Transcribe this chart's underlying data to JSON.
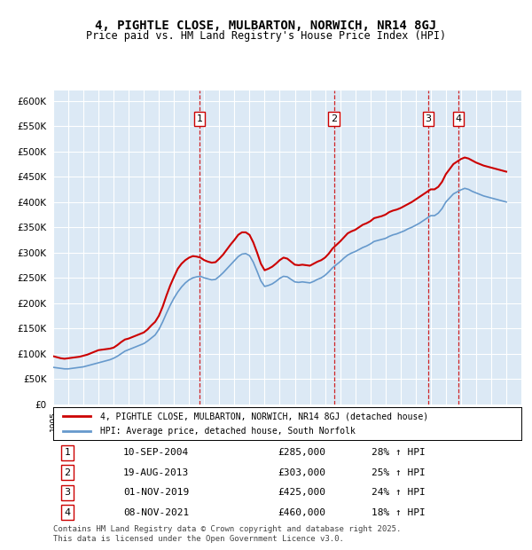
{
  "title": "4, PIGHTLE CLOSE, MULBARTON, NORWICH, NR14 8GJ",
  "subtitle": "Price paid vs. HM Land Registry's House Price Index (HPI)",
  "bg_color": "#dce9f5",
  "plot_bg_color": "#dce9f5",
  "ylim": [
    0,
    620000
  ],
  "yticks": [
    0,
    50000,
    100000,
    150000,
    200000,
    250000,
    300000,
    350000,
    400000,
    450000,
    500000,
    550000,
    600000
  ],
  "ylabel_format": "£{0}K",
  "xmin": 1995.0,
  "xmax": 2026.0,
  "transactions": [
    {
      "num": 1,
      "date": "10-SEP-2004",
      "price": 285000,
      "hpi_pct": "28%",
      "x": 2004.7
    },
    {
      "num": 2,
      "date": "19-AUG-2013",
      "price": 303000,
      "hpi_pct": "25%",
      "x": 2013.6
    },
    {
      "num": 3,
      "date": "01-NOV-2019",
      "price": 425000,
      "hpi_pct": "24%",
      "x": 2019.83
    },
    {
      "num": 4,
      "date": "08-NOV-2021",
      "price": 460000,
      "hpi_pct": "18%",
      "x": 2021.83
    }
  ],
  "red_line_color": "#cc0000",
  "blue_line_color": "#6699cc",
  "legend_label_red": "4, PIGHTLE CLOSE, MULBARTON, NORWICH, NR14 8GJ (detached house)",
  "legend_label_blue": "HPI: Average price, detached house, South Norfolk",
  "footer": "Contains HM Land Registry data © Crown copyright and database right 2025.\nThis data is licensed under the Open Government Licence v3.0.",
  "hpi_red_data": {
    "x": [
      1995.0,
      1995.25,
      1995.5,
      1995.75,
      1996.0,
      1996.25,
      1996.5,
      1996.75,
      1997.0,
      1997.25,
      1997.5,
      1997.75,
      1998.0,
      1998.25,
      1998.5,
      1998.75,
      1999.0,
      1999.25,
      1999.5,
      1999.75,
      2000.0,
      2000.25,
      2000.5,
      2000.75,
      2001.0,
      2001.25,
      2001.5,
      2001.75,
      2002.0,
      2002.25,
      2002.5,
      2002.75,
      2003.0,
      2003.25,
      2003.5,
      2003.75,
      2004.0,
      2004.25,
      2004.5,
      2004.75,
      2005.0,
      2005.25,
      2005.5,
      2005.75,
      2006.0,
      2006.25,
      2006.5,
      2006.75,
      2007.0,
      2007.25,
      2007.5,
      2007.75,
      2008.0,
      2008.25,
      2008.5,
      2008.75,
      2009.0,
      2009.25,
      2009.5,
      2009.75,
      2010.0,
      2010.25,
      2010.5,
      2010.75,
      2011.0,
      2011.25,
      2011.5,
      2011.75,
      2012.0,
      2012.25,
      2012.5,
      2012.75,
      2013.0,
      2013.25,
      2013.5,
      2013.75,
      2014.0,
      2014.25,
      2014.5,
      2014.75,
      2015.0,
      2015.25,
      2015.5,
      2015.75,
      2016.0,
      2016.25,
      2016.5,
      2016.75,
      2017.0,
      2017.25,
      2017.5,
      2017.75,
      2018.0,
      2018.25,
      2018.5,
      2018.75,
      2019.0,
      2019.25,
      2019.5,
      2019.75,
      2020.0,
      2020.25,
      2020.5,
      2020.75,
      2021.0,
      2021.25,
      2021.5,
      2021.75,
      2022.0,
      2022.25,
      2022.5,
      2022.75,
      2023.0,
      2023.25,
      2023.5,
      2023.75,
      2024.0,
      2024.25,
      2024.5,
      2024.75,
      2025.0
    ],
    "y": [
      95000,
      93000,
      91000,
      90000,
      91000,
      92000,
      93000,
      94000,
      96000,
      98000,
      101000,
      104000,
      107000,
      108000,
      109000,
      110000,
      112000,
      117000,
      123000,
      128000,
      130000,
      133000,
      136000,
      139000,
      142000,
      148000,
      156000,
      163000,
      175000,
      193000,
      215000,
      235000,
      252000,
      268000,
      278000,
      285000,
      290000,
      293000,
      292000,
      290000,
      285000,
      282000,
      280000,
      281000,
      288000,
      296000,
      306000,
      316000,
      325000,
      335000,
      340000,
      340000,
      335000,
      320000,
      300000,
      278000,
      265000,
      268000,
      272000,
      278000,
      285000,
      290000,
      288000,
      282000,
      276000,
      275000,
      276000,
      275000,
      274000,
      278000,
      282000,
      285000,
      290000,
      298000,
      308000,
      315000,
      322000,
      330000,
      338000,
      342000,
      345000,
      350000,
      355000,
      358000,
      362000,
      368000,
      370000,
      372000,
      375000,
      380000,
      383000,
      385000,
      388000,
      392000,
      396000,
      400000,
      405000,
      410000,
      415000,
      420000,
      425000,
      425000,
      430000,
      440000,
      455000,
      465000,
      475000,
      480000,
      485000,
      488000,
      486000,
      482000,
      478000,
      475000,
      472000,
      470000,
      468000,
      466000,
      464000,
      462000,
      460000
    ]
  },
  "hpi_blue_data": {
    "x": [
      1995.0,
      1995.25,
      1995.5,
      1995.75,
      1996.0,
      1996.25,
      1996.5,
      1996.75,
      1997.0,
      1997.25,
      1997.5,
      1997.75,
      1998.0,
      1998.25,
      1998.5,
      1998.75,
      1999.0,
      1999.25,
      1999.5,
      1999.75,
      2000.0,
      2000.25,
      2000.5,
      2000.75,
      2001.0,
      2001.25,
      2001.5,
      2001.75,
      2002.0,
      2002.25,
      2002.5,
      2002.75,
      2003.0,
      2003.25,
      2003.5,
      2003.75,
      2004.0,
      2004.25,
      2004.5,
      2004.75,
      2005.0,
      2005.25,
      2005.5,
      2005.75,
      2006.0,
      2006.25,
      2006.5,
      2006.75,
      2007.0,
      2007.25,
      2007.5,
      2007.75,
      2008.0,
      2008.25,
      2008.5,
      2008.75,
      2009.0,
      2009.25,
      2009.5,
      2009.75,
      2010.0,
      2010.25,
      2010.5,
      2010.75,
      2011.0,
      2011.25,
      2011.5,
      2011.75,
      2012.0,
      2012.25,
      2012.5,
      2012.75,
      2013.0,
      2013.25,
      2013.5,
      2013.75,
      2014.0,
      2014.25,
      2014.5,
      2014.75,
      2015.0,
      2015.25,
      2015.5,
      2015.75,
      2016.0,
      2016.25,
      2016.5,
      2016.75,
      2017.0,
      2017.25,
      2017.5,
      2017.75,
      2018.0,
      2018.25,
      2018.5,
      2018.75,
      2019.0,
      2019.25,
      2019.5,
      2019.75,
      2020.0,
      2020.25,
      2020.5,
      2020.75,
      2021.0,
      2021.25,
      2021.5,
      2021.75,
      2022.0,
      2022.25,
      2022.5,
      2022.75,
      2023.0,
      2023.25,
      2023.5,
      2023.75,
      2024.0,
      2024.25,
      2024.5,
      2024.75,
      2025.0
    ],
    "y": [
      73000,
      72000,
      71000,
      70000,
      70000,
      71000,
      72000,
      73000,
      74000,
      76000,
      78000,
      80000,
      82000,
      84000,
      86000,
      88000,
      91000,
      95000,
      100000,
      105000,
      108000,
      111000,
      114000,
      117000,
      120000,
      125000,
      131000,
      137000,
      148000,
      163000,
      180000,
      196000,
      210000,
      222000,
      232000,
      240000,
      246000,
      250000,
      252000,
      253000,
      250000,
      248000,
      246000,
      247000,
      253000,
      260000,
      268000,
      276000,
      284000,
      292000,
      297000,
      298000,
      294000,
      281000,
      263000,
      244000,
      233000,
      235000,
      238000,
      243000,
      249000,
      253000,
      252000,
      247000,
      242000,
      241000,
      242000,
      241000,
      240000,
      243000,
      247000,
      250000,
      255000,
      262000,
      270000,
      276000,
      282000,
      289000,
      295000,
      299000,
      302000,
      306000,
      310000,
      313000,
      317000,
      322000,
      324000,
      326000,
      328000,
      332000,
      335000,
      337000,
      340000,
      343000,
      347000,
      350000,
      354000,
      358000,
      363000,
      368000,
      373000,
      373000,
      378000,
      387000,
      400000,
      408000,
      416000,
      420000,
      424000,
      427000,
      425000,
      421000,
      418000,
      415000,
      412000,
      410000,
      408000,
      406000,
      404000,
      402000,
      400000
    ]
  }
}
